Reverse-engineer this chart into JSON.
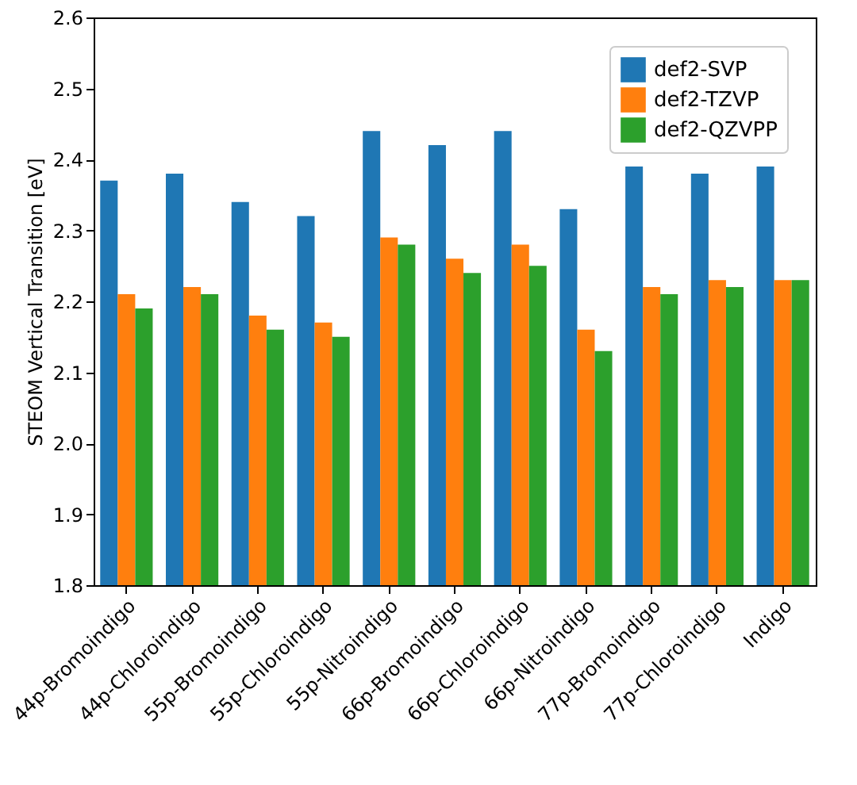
{
  "chart_data": {
    "type": "bar",
    "ylabel": "STEOM Vertical Transition [eV]",
    "categories": [
      "44p-Bromoindigo",
      "44p-Chloroindigo",
      "55p-Bromoindigo",
      "55p-Chloroindigo",
      "55p-Nitroindigo",
      "66p-Bromoindigo",
      "66p-Chloroindigo",
      "66p-Nitroindigo",
      "77p-Bromoindigo",
      "77p-Chloroindigo",
      "Indigo"
    ],
    "series": [
      {
        "name": "def2-SVP",
        "color": "#1f77b4",
        "values": [
          2.37,
          2.38,
          2.34,
          2.32,
          2.44,
          2.42,
          2.44,
          2.33,
          2.39,
          2.38,
          2.39
        ]
      },
      {
        "name": "def2-TZVP",
        "color": "#ff7f0e",
        "values": [
          2.21,
          2.22,
          2.18,
          2.17,
          2.29,
          2.26,
          2.28,
          2.16,
          2.22,
          2.23,
          2.23
        ]
      },
      {
        "name": "def2-QZVPP",
        "color": "#2ca02c",
        "values": [
          2.19,
          2.21,
          2.16,
          2.15,
          2.28,
          2.24,
          2.25,
          2.13,
          2.21,
          2.22,
          2.23
        ]
      }
    ],
    "ylim": [
      1.8,
      2.6
    ],
    "yticks": [
      1.8,
      1.9,
      {
        "value": 2.0,
        "label": "2.0"
      },
      2.1,
      2.2,
      2.3,
      2.4,
      2.5,
      2.6
    ],
    "grid": false,
    "legend": "top right"
  }
}
